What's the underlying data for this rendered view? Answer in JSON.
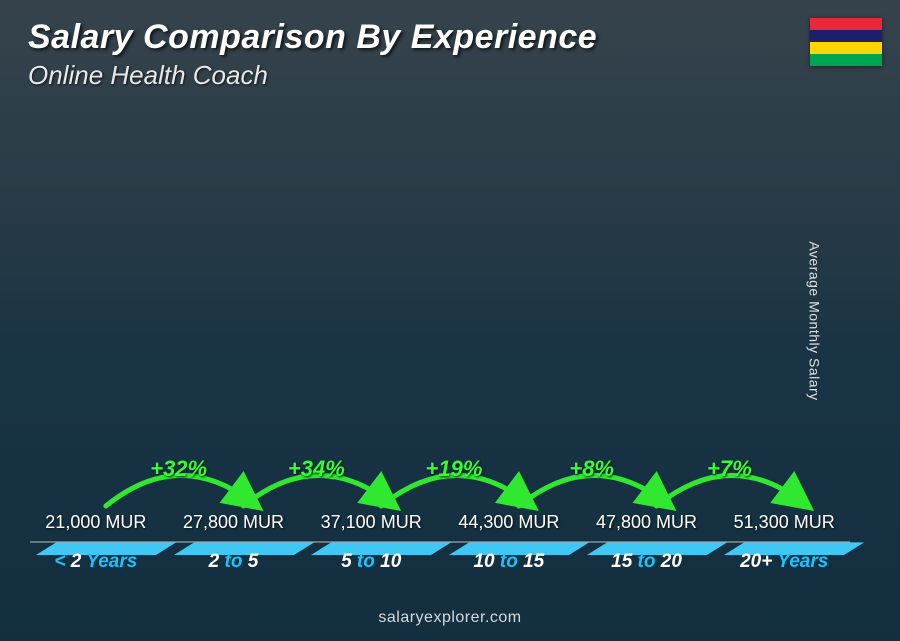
{
  "title": "Salary Comparison By Experience",
  "subtitle": "Online Health Coach",
  "footer": "salaryexplorer.com",
  "ylabel": "Average Monthly Salary",
  "flag_colors": [
    "#ea2839",
    "#1a206d",
    "#ffd500",
    "#00a551"
  ],
  "chart": {
    "type": "bar",
    "max_value": 55000,
    "bar_front": "#19a4df",
    "bar_side": "#0f7db3",
    "bar_top": "#40c8f5",
    "xlabel_accent": "#19c3ff",
    "pct_color": "#33ff33",
    "arc_stroke": "#2fe82f",
    "value_color": "#ffffff",
    "currency": "MUR",
    "bars": [
      {
        "label_pre": "< ",
        "label_num": "2",
        "label_post": " Years",
        "value": 21000,
        "value_label": "21,000 MUR"
      },
      {
        "label_pre": "",
        "label_num": "2",
        "label_mid": " to ",
        "label_num2": "5",
        "label_post": "",
        "value": 27800,
        "value_label": "27,800 MUR",
        "pct": "+32%"
      },
      {
        "label_pre": "",
        "label_num": "5",
        "label_mid": " to ",
        "label_num2": "10",
        "label_post": "",
        "value": 37100,
        "value_label": "37,100 MUR",
        "pct": "+34%"
      },
      {
        "label_pre": "",
        "label_num": "10",
        "label_mid": " to ",
        "label_num2": "15",
        "label_post": "",
        "value": 44300,
        "value_label": "44,300 MUR",
        "pct": "+19%"
      },
      {
        "label_pre": "",
        "label_num": "15",
        "label_mid": " to ",
        "label_num2": "20",
        "label_post": "",
        "value": 47800,
        "value_label": "47,800 MUR",
        "pct": "+8%"
      },
      {
        "label_pre": "",
        "label_num": "20+",
        "label_post": " Years",
        "value": 51300,
        "value_label": "51,300 MUR",
        "pct": "+7%"
      }
    ]
  }
}
